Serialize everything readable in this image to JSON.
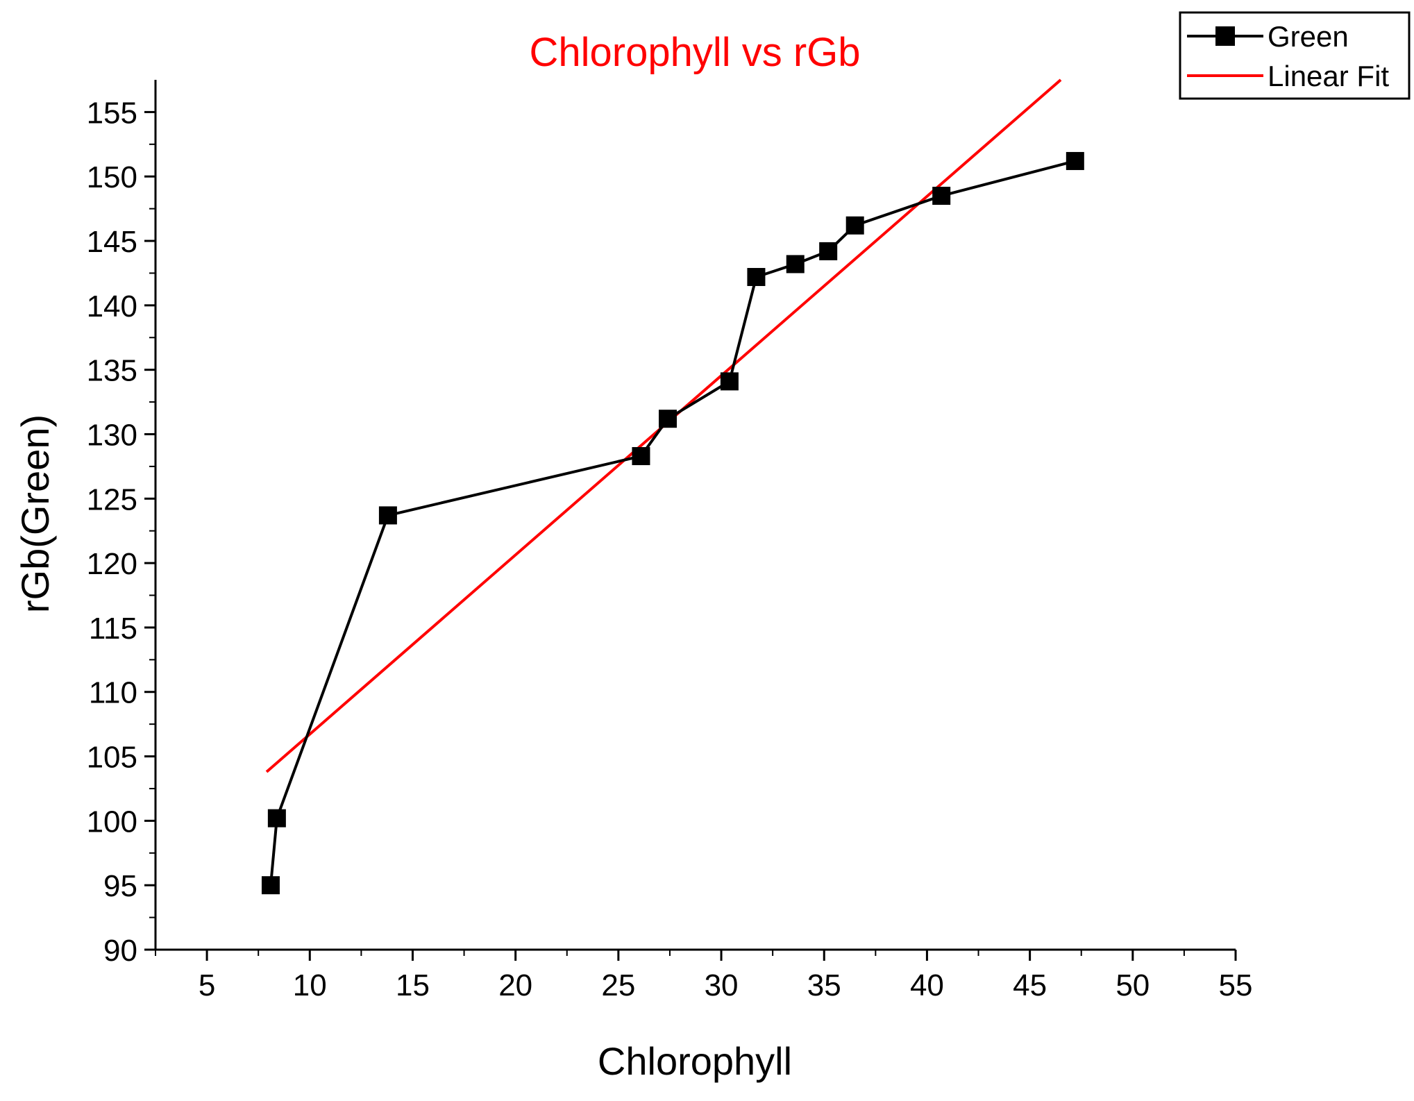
{
  "chart_data": {
    "type": "line",
    "title": "Chlorophyll vs rGb",
    "xlabel": "Chlorophyll",
    "ylabel": "rGb(Green)",
    "xlim": [
      2.5,
      55
    ],
    "ylim": [
      90,
      157.5
    ],
    "xticks": [
      5,
      10,
      15,
      20,
      25,
      30,
      35,
      40,
      45,
      50,
      55
    ],
    "yticks": [
      90,
      95,
      100,
      105,
      110,
      115,
      120,
      125,
      130,
      135,
      140,
      145,
      150,
      155
    ],
    "legend_position": "top-right",
    "series": [
      {
        "name": "Green",
        "kind": "line-with-square-markers",
        "color": "#000000",
        "x": [
          8.1,
          8.4,
          13.8,
          26.1,
          27.4,
          30.4,
          31.7,
          33.6,
          35.2,
          36.5,
          40.7,
          47.2
        ],
        "y": [
          95.0,
          100.2,
          123.7,
          128.3,
          131.2,
          134.1,
          142.2,
          143.2,
          144.2,
          146.2,
          148.5,
          151.2
        ]
      },
      {
        "name": "Linear Fit",
        "kind": "line",
        "color": "#ff0000",
        "x": [
          7.9,
          46.5
        ],
        "y": [
          103.8,
          157.5
        ]
      }
    ]
  },
  "colors": {
    "title": "#ff0000",
    "axis": "#000000",
    "series_green": "#000000",
    "series_fit": "#ff0000"
  }
}
